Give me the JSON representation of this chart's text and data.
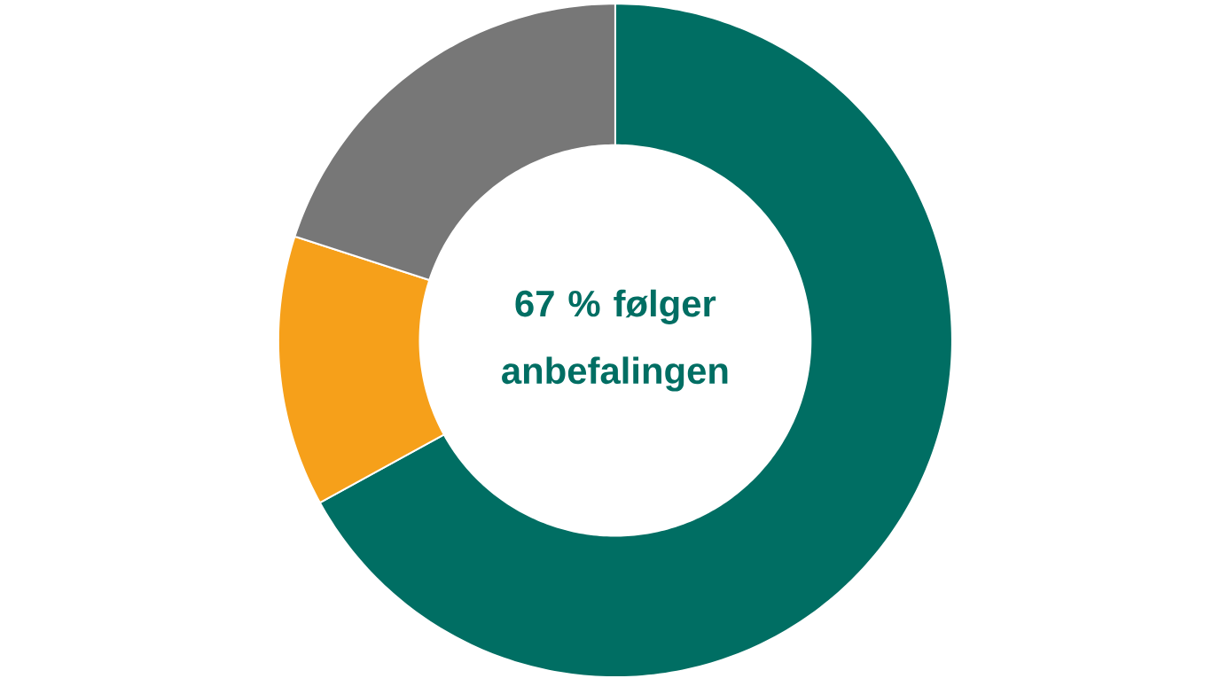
{
  "chart_data": {
    "type": "donut",
    "title": "67 % følger anbefalingen",
    "categories": [
      null,
      null,
      null
    ],
    "values": [
      67,
      13,
      20
    ],
    "colors": [
      "#006e63",
      "#f6a01a",
      "#777777"
    ]
  }
}
